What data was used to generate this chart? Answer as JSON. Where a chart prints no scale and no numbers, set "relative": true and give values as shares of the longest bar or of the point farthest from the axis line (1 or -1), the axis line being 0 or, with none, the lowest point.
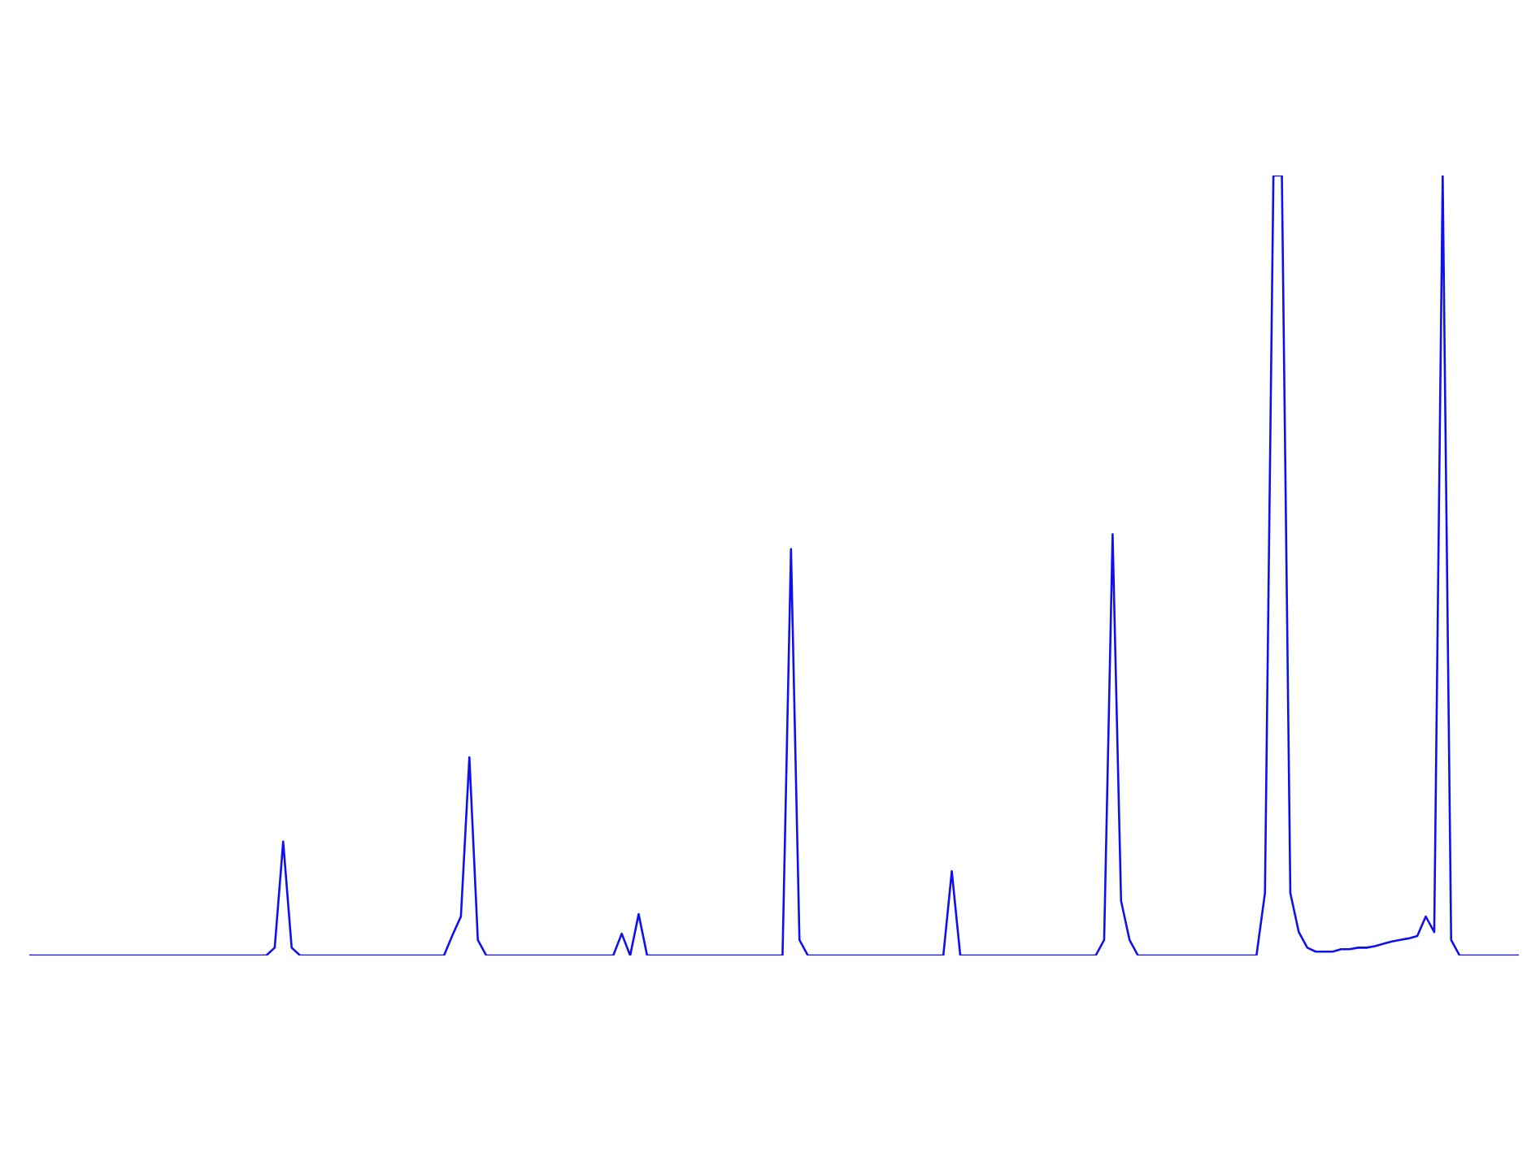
{
  "chart_data": {
    "type": "line",
    "relative": true,
    "grid": false,
    "legend": false,
    "marker": "none",
    "line_style": "solid",
    "categories": [
      null,
      null,
      null,
      null,
      null,
      null,
      null,
      null,
      null,
      null,
      null,
      null,
      null,
      null,
      null,
      null,
      null,
      null,
      null,
      null,
      null,
      null,
      null,
      null,
      null,
      null,
      null,
      null,
      null,
      null,
      null,
      null,
      null,
      null,
      null,
      null,
      null,
      null,
      null,
      null,
      null,
      null,
      null,
      null,
      null,
      null,
      null,
      null,
      null,
      null,
      null,
      null,
      null,
      null,
      null,
      null,
      null,
      null,
      null,
      null,
      null,
      null,
      null,
      null,
      null,
      null,
      null,
      null,
      null,
      null,
      null,
      null,
      null,
      null,
      null,
      null,
      null,
      null,
      null,
      null,
      null,
      null,
      null,
      null,
      null,
      null,
      null,
      null,
      null,
      null,
      null,
      null,
      null,
      null,
      null,
      null,
      null,
      null,
      null,
      null,
      null,
      null,
      null,
      null,
      null,
      null,
      null,
      null,
      null,
      null,
      null,
      null,
      null,
      null,
      null,
      null,
      null,
      null,
      null,
      null,
      null,
      null,
      null,
      null,
      null,
      null,
      null,
      null,
      null,
      null,
      null,
      null,
      null,
      null,
      null,
      null,
      null,
      null,
      null,
      null,
      null,
      null,
      null,
      null,
      null,
      null,
      null,
      null,
      null,
      null,
      null,
      null,
      null,
      null,
      null,
      null,
      null,
      null,
      null,
      null,
      null,
      null,
      null,
      null,
      null,
      null,
      null,
      null,
      null,
      null,
      null,
      null,
      null,
      null,
      null,
      null,
      null
    ],
    "series": [
      {
        "color": "#1010ee",
        "values": [
          0,
          0,
          0,
          0,
          0,
          0,
          0,
          0,
          0,
          0,
          0,
          0,
          0,
          0,
          0,
          0,
          0,
          0,
          0,
          0,
          0,
          0,
          0,
          0,
          0,
          0,
          0,
          0,
          0,
          0.01,
          0.146,
          0.01,
          0,
          0,
          0,
          0,
          0,
          0,
          0,
          0,
          0,
          0,
          0,
          0,
          0,
          0,
          0,
          0,
          0,
          0,
          0.026,
          0.05,
          0.254,
          0.02,
          0,
          0,
          0,
          0,
          0,
          0,
          0,
          0,
          0,
          0,
          0,
          0,
          0,
          0,
          0,
          0,
          0.028,
          0,
          0.053,
          0,
          0,
          0,
          0,
          0,
          0,
          0,
          0,
          0,
          0,
          0,
          0,
          0,
          0,
          0,
          0,
          0,
          0.521,
          0.02,
          0,
          0,
          0,
          0,
          0,
          0,
          0,
          0,
          0,
          0,
          0,
          0,
          0,
          0,
          0,
          0,
          0,
          0.108,
          0,
          0,
          0,
          0,
          0,
          0,
          0,
          0,
          0,
          0,
          0,
          0,
          0,
          0,
          0,
          0,
          0,
          0.02,
          0.54,
          0.07,
          0.02,
          0,
          0,
          0,
          0,
          0,
          0,
          0,
          0,
          0,
          0,
          0,
          0,
          0,
          0,
          0,
          0.08,
          1,
          1,
          0.08,
          0.03,
          0.01,
          0.005,
          0.005,
          0.005,
          0.008,
          0.008,
          0.01,
          0.01,
          0.012,
          0.015,
          0.018,
          0.02,
          0.022,
          0.025,
          0.05,
          0.03,
          1,
          0.02,
          0,
          0,
          0,
          0,
          0,
          0,
          0,
          0
        ]
      }
    ]
  }
}
